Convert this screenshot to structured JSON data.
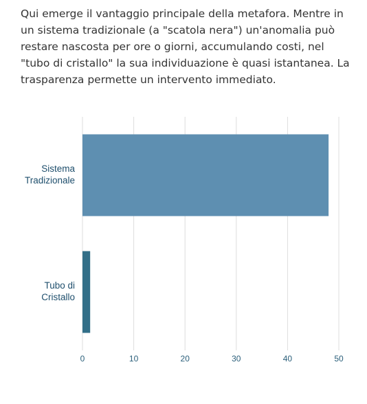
{
  "intro": "Qui emerge il vantaggio principale della metafora. Mentre in un sistema tradizionale (a \"scatola nera\") un'anomalia può restare nascosta per ore o giorni, accumulando costi, nel \"tubo di cristallo\" la sua individuazione è quasi istantanea. La trasparenza permette un intervento immediato.",
  "chart_data": {
    "type": "hbar",
    "categories": [
      [
        "Sistema",
        "Tradizionale"
      ],
      [
        "Tubo di",
        "Cristallo"
      ]
    ],
    "values": [
      48,
      1.5
    ],
    "colors": [
      "#5e8fb1",
      "#326f88"
    ],
    "xlim": [
      0,
      50
    ],
    "xticks": [
      0,
      10,
      20,
      30,
      40,
      50
    ],
    "grid": true
  }
}
